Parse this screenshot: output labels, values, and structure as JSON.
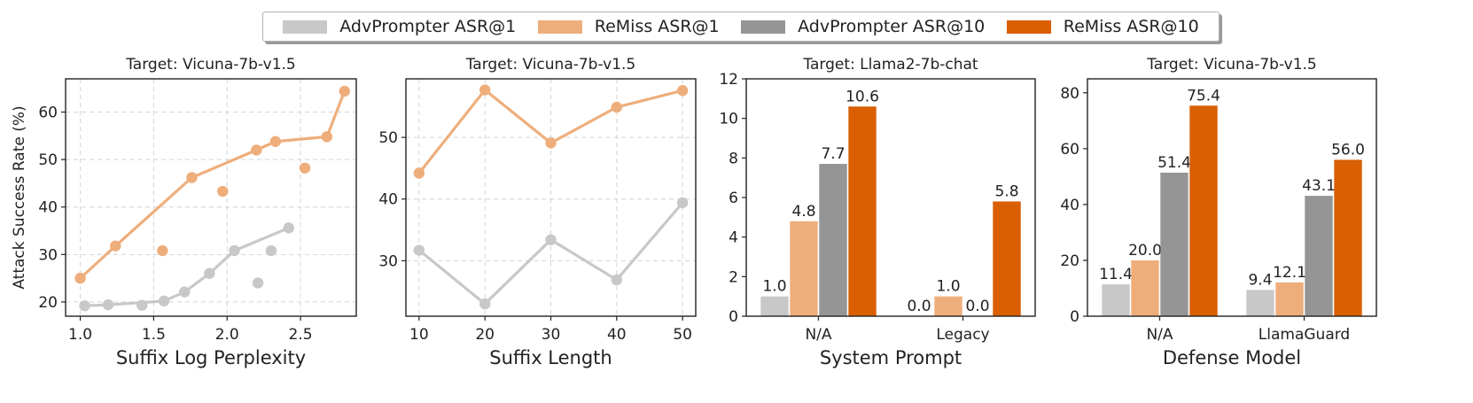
{
  "legend": [
    {
      "label": "AdvPrompter ASR@1",
      "color": "#c8c8c8"
    },
    {
      "label": "ReMiss ASR@1",
      "color": "#eeae7c"
    },
    {
      "label": "AdvPrompter ASR@10",
      "color": "#959595"
    },
    {
      "label": "ReMiss ASR@10",
      "color": "#d95f02"
    }
  ],
  "chart_data": [
    {
      "type": "line",
      "title": "Target: Vicuna-7b-v1.5",
      "xlabel": "Suffix Log Perplexity",
      "ylabel": "Attack Success Rate (%)",
      "xlim": [
        0.9,
        2.88
      ],
      "ylim": [
        17,
        67
      ],
      "xticks": [
        "1.0",
        "1.5",
        "2.0",
        "2.5"
      ],
      "yticks": [
        "20",
        "30",
        "40",
        "50",
        "60"
      ],
      "grid": true,
      "series": [
        {
          "name": "AdvPrompter ASR@1",
          "color": "#c8c8c8",
          "line": [
            [
              1.03,
              19.2
            ],
            [
              1.19,
              19.4
            ],
            [
              1.57,
              20.2
            ],
            [
              1.71,
              22.1
            ],
            [
              1.88,
              26.0
            ],
            [
              2.05,
              30.8
            ],
            [
              2.42,
              35.6
            ]
          ],
          "points": [
            [
              1.03,
              19.2
            ],
            [
              1.19,
              19.4
            ],
            [
              1.42,
              19.3
            ],
            [
              1.57,
              20.2
            ],
            [
              1.71,
              22.1
            ],
            [
              1.88,
              26.0
            ],
            [
              2.05,
              30.8
            ],
            [
              2.21,
              24.0
            ],
            [
              2.3,
              30.8
            ],
            [
              2.42,
              35.6
            ]
          ]
        },
        {
          "name": "ReMiss ASR@1",
          "color": "#eeae7c",
          "line": [
            [
              1.0,
              25.0
            ],
            [
              1.24,
              31.8
            ],
            [
              1.76,
              46.2
            ],
            [
              2.2,
              52.0
            ],
            [
              2.33,
              53.8
            ],
            [
              2.68,
              54.8
            ],
            [
              2.8,
              64.4
            ]
          ],
          "points": [
            [
              1.0,
              25.0
            ],
            [
              1.24,
              31.8
            ],
            [
              1.56,
              30.8
            ],
            [
              1.76,
              46.2
            ],
            [
              1.97,
              43.3
            ],
            [
              2.2,
              52.0
            ],
            [
              2.33,
              53.8
            ],
            [
              2.53,
              48.2
            ],
            [
              2.68,
              54.8
            ],
            [
              2.8,
              64.4
            ]
          ]
        }
      ]
    },
    {
      "type": "line",
      "title": "Target: Vicuna-7b-v1.5",
      "xlabel": "Suffix Length",
      "ylabel": "",
      "xlim": [
        8,
        52
      ],
      "ylim": [
        21,
        59.5
      ],
      "x": [
        10,
        20,
        30,
        40,
        50
      ],
      "xticks": [
        "10",
        "20",
        "30",
        "40",
        "50"
      ],
      "yticks": [
        "30",
        "40",
        "50"
      ],
      "grid": true,
      "series": [
        {
          "name": "AdvPrompter ASR@1",
          "color": "#c8c8c8",
          "values": [
            31.7,
            23.0,
            33.4,
            26.9,
            39.4
          ]
        },
        {
          "name": "ReMiss ASR@1",
          "color": "#eeae7c",
          "values": [
            44.2,
            57.7,
            49.1,
            54.9,
            57.6
          ]
        }
      ]
    },
    {
      "type": "bar",
      "title": "Target: Llama2-7b-chat",
      "xlabel": "System Prompt",
      "ylabel": "",
      "ylim": [
        0,
        12
      ],
      "categories": [
        "N/A",
        "Legacy"
      ],
      "yticks": [
        "0",
        "2",
        "4",
        "6",
        "8",
        "10",
        "12"
      ],
      "grid": false,
      "series": [
        {
          "name": "AdvPrompter ASR@1",
          "color": "#c8c8c8",
          "values": [
            1.0,
            0.0
          ],
          "labels": [
            "1.0",
            "0.0"
          ]
        },
        {
          "name": "ReMiss ASR@1",
          "color": "#eeae7c",
          "values": [
            4.8,
            1.0
          ],
          "labels": [
            "4.8",
            "1.0"
          ]
        },
        {
          "name": "AdvPrompter ASR@10",
          "color": "#959595",
          "values": [
            7.7,
            0.0
          ],
          "labels": [
            "7.7",
            "0.0"
          ]
        },
        {
          "name": "ReMiss ASR@10",
          "color": "#d95f02",
          "values": [
            10.6,
            5.8
          ],
          "labels": [
            "10.6",
            "5.8"
          ]
        }
      ]
    },
    {
      "type": "bar",
      "title": "Target: Vicuna-7b-v1.5",
      "xlabel": "Defense Model",
      "ylabel": "",
      "ylim": [
        0,
        85
      ],
      "categories": [
        "N/A",
        "LlamaGuard"
      ],
      "yticks": [
        "0",
        "20",
        "40",
        "60",
        "80"
      ],
      "grid": false,
      "series": [
        {
          "name": "AdvPrompter ASR@1",
          "color": "#c8c8c8",
          "values": [
            11.4,
            9.4
          ],
          "labels": [
            "11.4",
            "9.4"
          ]
        },
        {
          "name": "ReMiss ASR@1",
          "color": "#eeae7c",
          "values": [
            20.0,
            12.1
          ],
          "labels": [
            "20.0",
            "12.1"
          ]
        },
        {
          "name": "AdvPrompter ASR@10",
          "color": "#959595",
          "values": [
            51.4,
            43.1
          ],
          "labels": [
            "51.4",
            "43.1"
          ]
        },
        {
          "name": "ReMiss ASR@10",
          "color": "#d95f02",
          "values": [
            75.4,
            56.0
          ],
          "labels": [
            "75.4",
            "56.0"
          ]
        }
      ]
    }
  ]
}
